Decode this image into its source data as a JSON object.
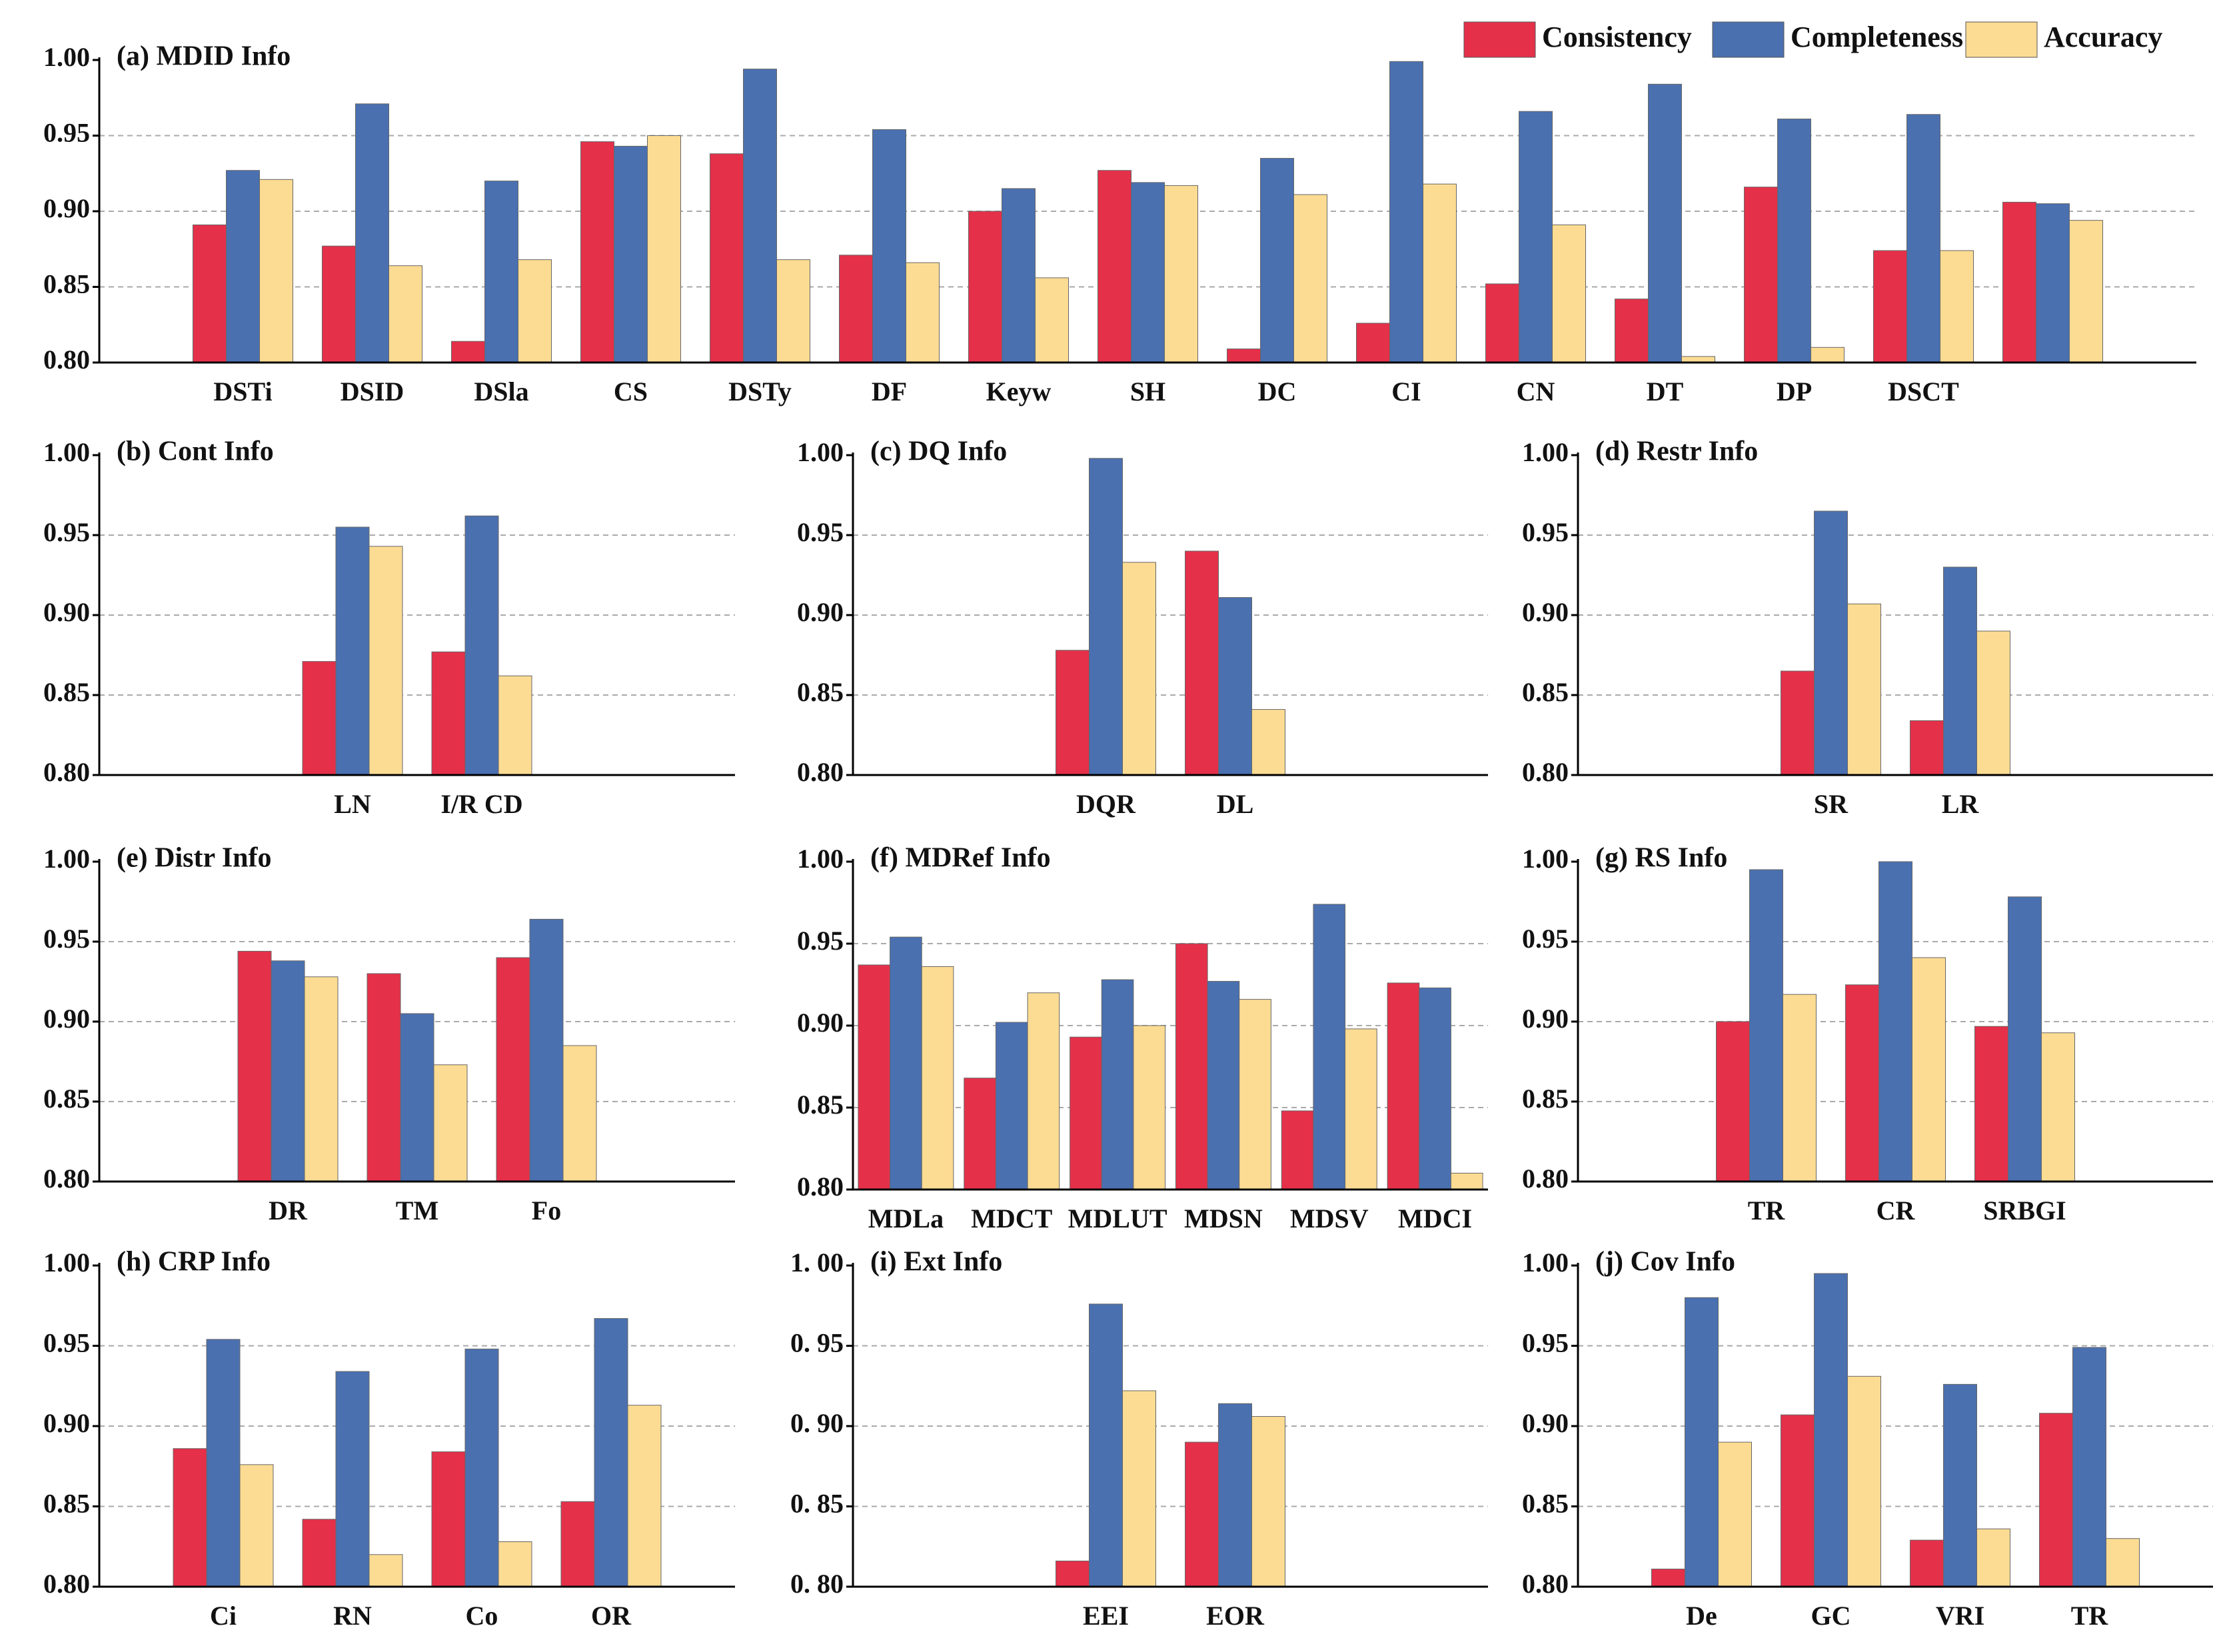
{
  "chart_data": [
    {
      "type": "bar",
      "title": "(a) MDID Info",
      "categories": [
        "DSTi",
        "DSID",
        "DSla",
        "CS",
        "DSTy",
        "DF",
        "Keyw",
        "SH",
        "DC",
        "CI",
        "CN",
        "DT",
        "DP",
        "DSCT",
        null
      ],
      "series": [
        {
          "name": "Consistency",
          "color": "#e5304a",
          "values": [
            0.891,
            0.877,
            0.814,
            0.946,
            0.938,
            0.871,
            0.9,
            0.927,
            0.809,
            0.826,
            0.852,
            0.842,
            0.916,
            0.874,
            0.906
          ]
        },
        {
          "name": "Completeness",
          "color": "#4a70b0",
          "values": [
            0.927,
            0.971,
            0.92,
            0.943,
            0.994,
            0.954,
            0.915,
            0.919,
            0.935,
            0.999,
            0.966,
            0.984,
            0.961,
            0.964,
            0.905
          ]
        },
        {
          "name": "Accuracy",
          "color": "#fcdc93",
          "values": [
            0.921,
            0.864,
            0.868,
            0.95,
            0.868,
            0.866,
            0.856,
            0.917,
            0.911,
            0.918,
            0.891,
            0.804,
            0.81,
            0.874,
            0.894
          ]
        }
      ],
      "ylim": [
        0.8,
        1.0
      ],
      "yticks": [
        {
          "value": 0.8,
          "label": "0.80"
        },
        {
          "value": 0.85,
          "label": "0.85"
        },
        {
          "value": 0.9,
          "label": "0.90"
        },
        {
          "value": 0.95,
          "label": "0.95"
        },
        {
          "value": 1.0,
          "label": "1.00"
        }
      ]
    },
    {
      "type": "bar",
      "title": "(b) Cont Info",
      "categories": [
        "LN",
        "I/R CD"
      ],
      "series": [
        {
          "values": [
            0.871,
            0.877
          ]
        },
        {
          "values": [
            0.955,
            0.962
          ]
        },
        {
          "values": [
            0.943,
            0.862
          ]
        }
      ],
      "ylim": [
        0.8,
        1.0
      ],
      "yticks": [
        {
          "value": 0.8,
          "label": "0.80"
        },
        {
          "value": 0.85,
          "label": "0.85"
        },
        {
          "value": 0.9,
          "label": "0.90"
        },
        {
          "value": 0.95,
          "label": "0.95"
        },
        {
          "value": 1.0,
          "label": "1.00"
        }
      ]
    },
    {
      "type": "bar",
      "title": "(c) DQ Info",
      "categories": [
        "DQR",
        "DL"
      ],
      "series": [
        {
          "values": [
            0.878,
            0.94
          ]
        },
        {
          "values": [
            0.998,
            0.911
          ]
        },
        {
          "values": [
            0.933,
            0.841
          ]
        }
      ],
      "ylim": [
        0.8,
        1.0
      ],
      "yticks": [
        {
          "value": 0.8,
          "label": "0.80"
        },
        {
          "value": 0.85,
          "label": "0.85"
        },
        {
          "value": 0.9,
          "label": "0.90"
        },
        {
          "value": 0.95,
          "label": "0.95"
        },
        {
          "value": 1.0,
          "label": "1.00"
        }
      ]
    },
    {
      "type": "bar",
      "title": "(d) Restr Info",
      "categories": [
        "SR",
        "LR"
      ],
      "series": [
        {
          "values": [
            0.865,
            0.834
          ]
        },
        {
          "values": [
            0.965,
            0.93
          ]
        },
        {
          "values": [
            0.907,
            0.89
          ]
        }
      ],
      "ylim": [
        0.8,
        1.0
      ],
      "yticks": [
        {
          "value": 0.8,
          "label": "0.80"
        },
        {
          "value": 0.85,
          "label": "0.85"
        },
        {
          "value": 0.9,
          "label": "0.90"
        },
        {
          "value": 0.95,
          "label": "0.95"
        },
        {
          "value": 1.0,
          "label": "1.00"
        }
      ]
    },
    {
      "type": "bar",
      "title": "(e) Distr Info",
      "categories": [
        "DR",
        "TM",
        "Fo"
      ],
      "series": [
        {
          "values": [
            0.944,
            0.93,
            0.94
          ]
        },
        {
          "values": [
            0.938,
            0.905,
            0.964
          ]
        },
        {
          "values": [
            0.928,
            0.873,
            0.885
          ]
        }
      ],
      "ylim": [
        0.8,
        1.0
      ],
      "yticks": [
        {
          "value": 0.8,
          "label": "0.80"
        },
        {
          "value": 0.85,
          "label": "0.85"
        },
        {
          "value": 0.9,
          "label": "0.90"
        },
        {
          "value": 0.95,
          "label": "0.95"
        },
        {
          "value": 1.0,
          "label": "1.00"
        }
      ]
    },
    {
      "type": "bar",
      "title": "(f) MDRef Info",
      "categories": [
        "MDLa",
        "MDCT",
        "MDLUT",
        "MDSN",
        "MDSV",
        "MDCI"
      ],
      "series": [
        {
          "values": [
            0.937,
            0.868,
            0.893,
            0.95,
            0.848,
            0.926
          ]
        },
        {
          "values": [
            0.954,
            0.902,
            0.928,
            0.927,
            0.974,
            0.923
          ]
        },
        {
          "values": [
            0.936,
            0.92,
            0.9,
            0.916,
            0.898,
            0.81
          ]
        }
      ],
      "ylim": [
        0.8,
        1.0
      ],
      "yticks": [
        {
          "value": 0.8,
          "label": "0.80"
        },
        {
          "value": 0.85,
          "label": "0.85"
        },
        {
          "value": 0.9,
          "label": "0.90"
        },
        {
          "value": 0.95,
          "label": "0.95"
        },
        {
          "value": 1.0,
          "label": "1.00"
        }
      ]
    },
    {
      "type": "bar",
      "title": "(g) RS Info",
      "categories": [
        "TR",
        "CR",
        "SRBGI"
      ],
      "series": [
        {
          "values": [
            0.9,
            0.923,
            0.897
          ]
        },
        {
          "values": [
            0.995,
            1.0,
            0.978
          ]
        },
        {
          "values": [
            0.917,
            0.94,
            0.893
          ]
        }
      ],
      "ylim": [
        0.8,
        1.0
      ],
      "yticks": [
        {
          "value": 0.8,
          "label": "0.80"
        },
        {
          "value": 0.85,
          "label": "0.85"
        },
        {
          "value": 0.9,
          "label": "0.90"
        },
        {
          "value": 0.95,
          "label": "0.95"
        },
        {
          "value": 1.0,
          "label": "1.00"
        }
      ]
    },
    {
      "type": "bar",
      "title": "(h) CRP Info",
      "categories": [
        "Ci",
        "RN",
        "Co",
        "OR"
      ],
      "series": [
        {
          "values": [
            0.886,
            0.842,
            0.884,
            0.853
          ]
        },
        {
          "values": [
            0.954,
            0.934,
            0.948,
            0.967
          ]
        },
        {
          "values": [
            0.876,
            0.82,
            0.828,
            0.913
          ]
        }
      ],
      "ylim": [
        0.8,
        1.0
      ],
      "yticks": [
        {
          "value": 0.8,
          "label": "0.80"
        },
        {
          "value": 0.85,
          "label": "0.85"
        },
        {
          "value": 0.9,
          "label": "0.90"
        },
        {
          "value": 0.95,
          "label": "0.95"
        },
        {
          "value": 1.0,
          "label": "1.00"
        }
      ]
    },
    {
      "type": "bar",
      "title": "(i) Ext Info",
      "categories": [
        "EEI",
        "EOR"
      ],
      "series": [
        {
          "values": [
            0.816,
            0.89
          ]
        },
        {
          "values": [
            0.976,
            0.914
          ]
        },
        {
          "values": [
            0.922,
            0.906
          ]
        }
      ],
      "ylim": [
        0.8,
        1.0
      ],
      "yticks": [
        {
          "value": 0.8,
          "label": "0. 80"
        },
        {
          "value": 0.85,
          "label": "0. 85"
        },
        {
          "value": 0.9,
          "label": "0. 90"
        },
        {
          "value": 0.95,
          "label": "0. 95"
        },
        {
          "value": 1.0,
          "label": "1. 00"
        }
      ]
    },
    {
      "type": "bar",
      "title": "(j) Cov Info",
      "categories": [
        "De",
        "GC",
        "VRI",
        "TR"
      ],
      "series": [
        {
          "values": [
            0.811,
            0.907,
            0.829,
            0.908
          ]
        },
        {
          "values": [
            0.98,
            0.995,
            0.926,
            0.949
          ]
        },
        {
          "values": [
            0.89,
            0.931,
            0.836,
            0.83
          ]
        }
      ],
      "ylim": [
        0.8,
        1.0
      ],
      "yticks": [
        {
          "value": 0.8,
          "label": "0.80"
        },
        {
          "value": 0.85,
          "label": "0.85"
        },
        {
          "value": 0.9,
          "label": "0.90"
        },
        {
          "value": 0.95,
          "label": "0.95"
        },
        {
          "value": 1.0,
          "label": "1.00"
        }
      ]
    }
  ]
}
